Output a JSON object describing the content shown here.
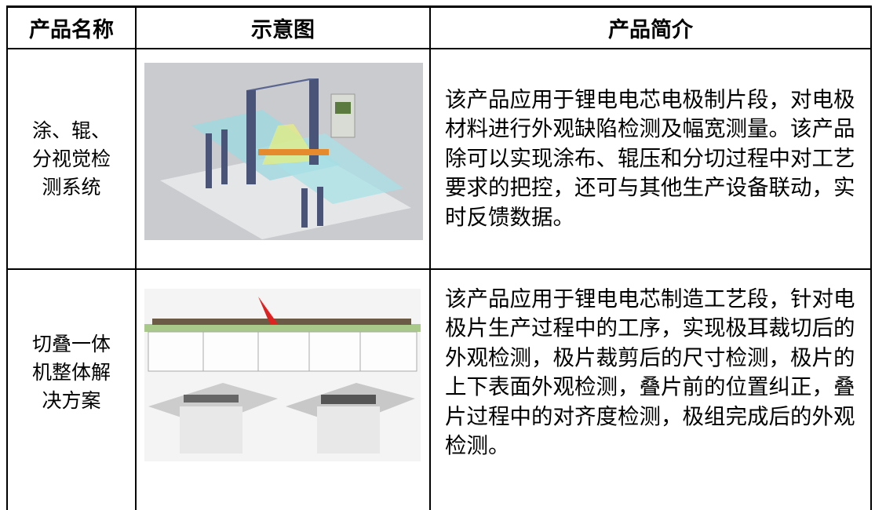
{
  "table": {
    "header": [
      "产品名称",
      "示意图",
      "产品简介"
    ],
    "rows": [
      {
        "name": [
          "涂、辊、",
          "分视觉检",
          "测系统"
        ],
        "description": [
          "该产品应用于锂电电芯电极制片段，对电极",
          "材料进行外观缺陷检测及幅宽测量。该产品",
          "除可以实现涂布、辊压和分切过程中对工艺",
          "要求的把控，还可与其他生产设备联动，实",
          "时反馈数据。"
        ]
      },
      {
        "name": [
          "切叠一体",
          "机整体解",
          "决方案"
        ],
        "description": [
          "该产品应用于锂电电芯制造工艺段，针对电",
          "极片生产过程中的工序，实现极耳裁切后的",
          "外观检测，极片裁剪后的尺寸检测，极片的",
          "上下表面外观检测，叠片前的位置纠正，叠",
          "片过程中的对齐度检测，极组完成后的外观",
          "检测。"
        ]
      }
    ]
  }
}
